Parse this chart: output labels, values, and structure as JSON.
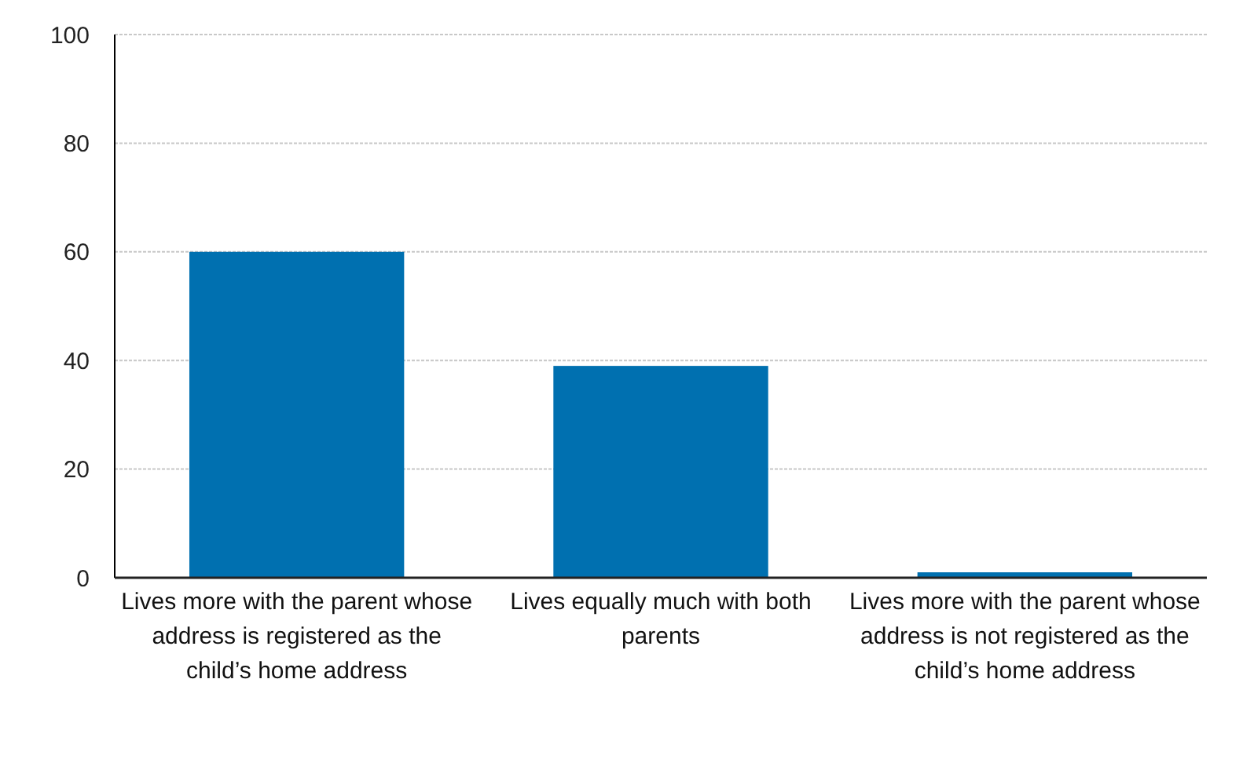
{
  "chart_data": {
    "type": "bar",
    "categories": [
      "Lives more with the parent whose address is registered as the child’s home address",
      "Lives equally  much with both parents",
      "Lives more with the parent whose address is not registered as the child’s home address"
    ],
    "values": [
      60,
      39,
      1
    ],
    "color": "#0070b0",
    "ylim": [
      0,
      100
    ],
    "yticks": [
      0,
      20,
      40,
      60,
      80,
      100
    ],
    "grid": "y"
  }
}
